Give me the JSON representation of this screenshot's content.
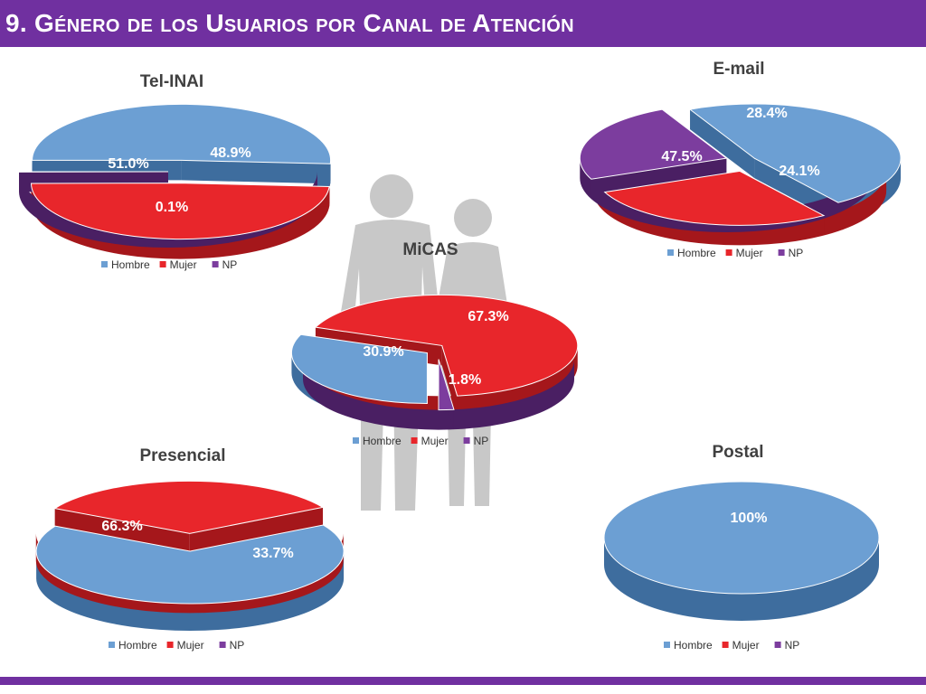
{
  "header": {
    "title": "9. Género de los Usuarios por Canal de Atención"
  },
  "legend_labels": [
    "Hombre",
    "Mujer",
    "NP"
  ],
  "colors": {
    "hombre": "#6c9fd3",
    "mujer": "#e8262b",
    "np": "#7c3d9e",
    "header": "#7030a0"
  },
  "chart_data": [
    {
      "type": "pie",
      "title": "Tel-INAI",
      "categories": [
        "Hombre",
        "Mujer",
        "NP"
      ],
      "values": [
        51.0,
        48.9,
        0.1
      ],
      "labels": [
        "51.0%",
        "48.9%",
        "0.1%"
      ],
      "legend": "bottom"
    },
    {
      "type": "pie",
      "title": "E-mail",
      "categories": [
        "Hombre",
        "Mujer",
        "NP"
      ],
      "values": [
        47.5,
        28.4,
        24.1
      ],
      "labels": [
        "47.5%",
        "28.4%",
        "24.1%"
      ],
      "legend": "bottom"
    },
    {
      "type": "pie",
      "title": "MiCAS",
      "categories": [
        "Hombre",
        "Mujer",
        "NP"
      ],
      "values": [
        30.9,
        67.3,
        1.8
      ],
      "labels": [
        "30.9%",
        "67.3%",
        "1.8%"
      ],
      "legend": "bottom"
    },
    {
      "type": "pie",
      "title": "Presencial",
      "categories": [
        "Hombre",
        "Mujer",
        "NP"
      ],
      "values": [
        66.3,
        33.7,
        0
      ],
      "labels": [
        "66.3%",
        "33.7%",
        ""
      ],
      "legend": "bottom"
    },
    {
      "type": "pie",
      "title": "Postal",
      "categories": [
        "Hombre",
        "Mujer",
        "NP"
      ],
      "values": [
        100,
        0,
        0
      ],
      "labels": [
        "100%",
        "",
        ""
      ],
      "legend": "bottom"
    }
  ]
}
